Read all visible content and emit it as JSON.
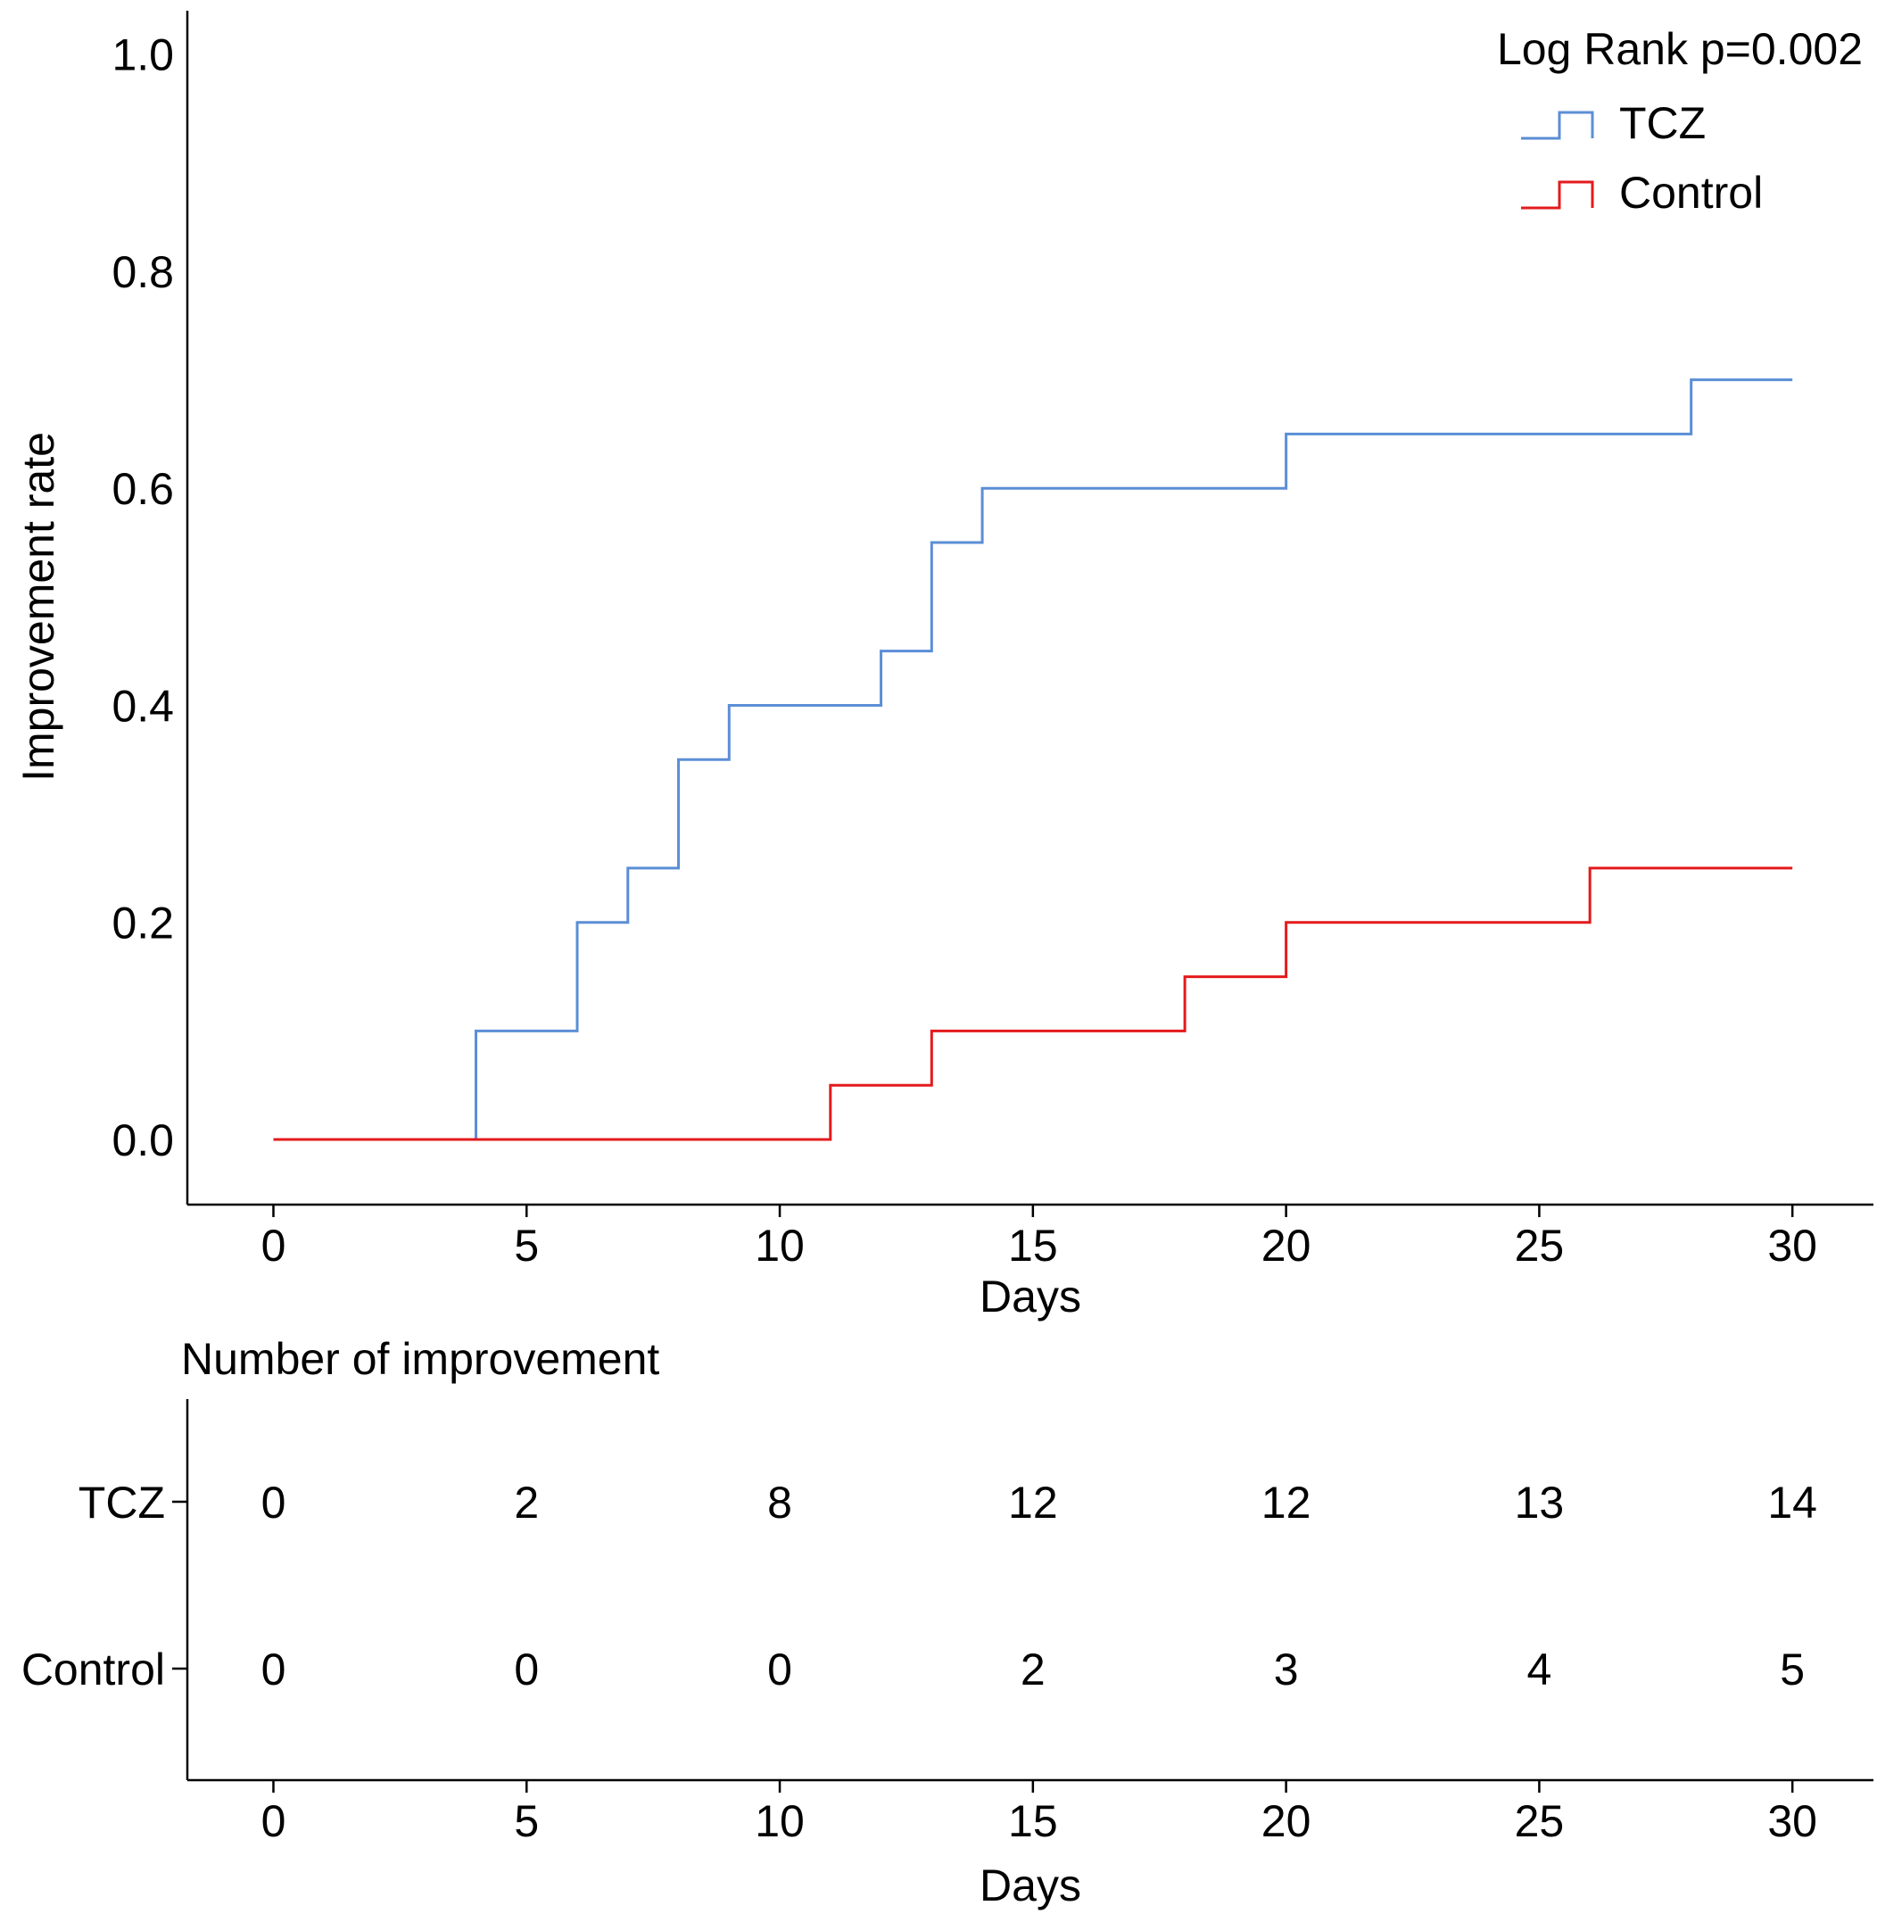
{
  "chart_data": [
    {
      "type": "line",
      "subtype": "step",
      "title": "",
      "xlabel": "Days",
      "ylabel": "Improvement rate",
      "xlim": [
        -1.7,
        31.6
      ],
      "ylim": [
        -0.06,
        1.04
      ],
      "xticks": [
        0,
        5,
        10,
        15,
        20,
        25,
        30
      ],
      "yticks": [
        0.0,
        0.2,
        0.4,
        0.6,
        0.8,
        1.0
      ],
      "ytick_labels": [
        "0.0",
        "0.2",
        "0.4",
        "0.6",
        "0.8",
        "1.0"
      ],
      "grid": false,
      "legend": {
        "position": "top-right",
        "title": "Log Rank p=0.002"
      },
      "series": [
        {
          "name": "TCZ",
          "color": "#5b8ed6",
          "x": [
            0,
            4,
            6,
            7,
            8,
            9,
            12,
            13,
            14,
            20,
            28,
            30
          ],
          "values": [
            0,
            0.1,
            0.2,
            0.25,
            0.35,
            0.4,
            0.45,
            0.55,
            0.6,
            0.65,
            0.7,
            0.7
          ]
        },
        {
          "name": "Control",
          "color": "#e41a1c",
          "x": [
            0,
            11,
            13,
            18,
            20,
            26,
            30
          ],
          "values": [
            0,
            0.05,
            0.1,
            0.15,
            0.2,
            0.25,
            0.25
          ]
        }
      ]
    },
    {
      "type": "table",
      "title": "Number of improvement",
      "xlabel": "Days",
      "xlim": [
        -1.7,
        31.6
      ],
      "columns": [
        0,
        5,
        10,
        15,
        20,
        25,
        30
      ],
      "rows": [
        {
          "name": "TCZ",
          "values": [
            0,
            2,
            8,
            12,
            12,
            13,
            14
          ]
        },
        {
          "name": "Control",
          "values": [
            0,
            0,
            0,
            2,
            3,
            4,
            5
          ]
        }
      ]
    }
  ]
}
